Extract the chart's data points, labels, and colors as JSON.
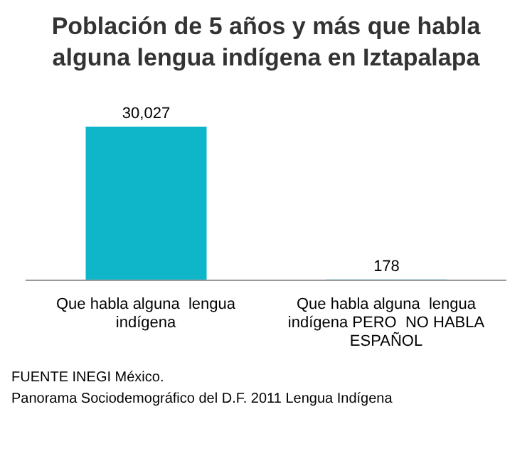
{
  "chart_data": {
    "type": "bar",
    "title": "Población de 5 años y más que habla alguna lengua indígena en Iztapalapa",
    "categories": [
      "Que habla alguna  lengua indígena",
      "Que habla alguna  lengua indígena PERO  NO HABLA ESPAÑOL"
    ],
    "values": [
      30027,
      178
    ],
    "value_labels": [
      "30,027",
      "178"
    ],
    "color": "#0fb5c9",
    "annotations": [
      "FUENTE  INEGI México.",
      "Panorama Sociodemográfico del D.F. 2011 Lengua Indígena"
    ]
  }
}
